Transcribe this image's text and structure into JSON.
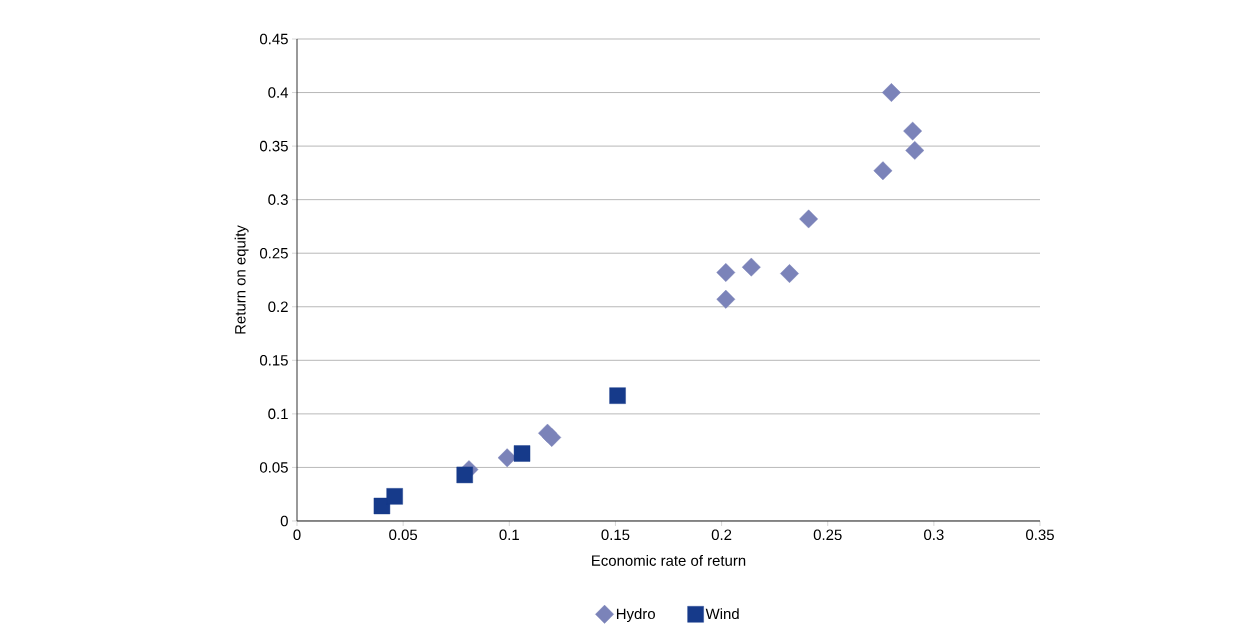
{
  "chart_data": {
    "type": "scatter",
    "xlabel": "Economic rate of return",
    "ylabel": "Return on equity",
    "xlim": [
      0,
      0.35
    ],
    "xticks": [
      0,
      0.05,
      0.1,
      0.15,
      0.2,
      0.25,
      0.3,
      0.35
    ],
    "ylim": [
      0,
      0.45
    ],
    "yticks": [
      0,
      0.05,
      0.1,
      0.15,
      0.2,
      0.25,
      0.3,
      0.35,
      0.4,
      0.45
    ],
    "grid": "y",
    "legend": "bottom",
    "series": [
      {
        "name": "Hydro",
        "color": "#7b83b9",
        "marker": "diamond",
        "x": [
          0.28,
          0.29,
          0.291,
          0.276,
          0.241,
          0.214,
          0.202,
          0.232,
          0.202,
          0.118,
          0.12,
          0.099,
          0.081
        ],
        "values": [
          0.4,
          0.364,
          0.346,
          0.327,
          0.282,
          0.237,
          0.232,
          0.231,
          0.207,
          0.082,
          0.078,
          0.059,
          0.048
        ]
      },
      {
        "name": "Wind",
        "color": "#163a8a",
        "marker": "square",
        "x": [
          0.04,
          0.046,
          0.079,
          0.106,
          0.151
        ],
        "values": [
          0.014,
          0.023,
          0.043,
          0.063,
          0.117
        ]
      }
    ]
  }
}
